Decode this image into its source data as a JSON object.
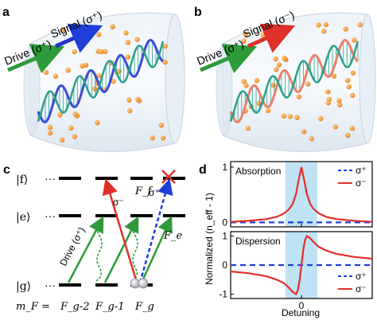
{
  "panels": {
    "a": {
      "label": "a",
      "drive_label": "Drive (σ⁺)",
      "signal_label": "Signal (σ⁺)",
      "drive_color": "#2e9a3a",
      "signal_color": "#2534c8",
      "helix_color": "#3d4bd4"
    },
    "b": {
      "label": "b",
      "drive_label": "Drive (σ⁺)",
      "signal_label": "Signal (σ⁻)",
      "drive_color": "#2e9a3a",
      "signal_color": "#e0302a",
      "helix_color": "#e8826a"
    },
    "c": {
      "label": "c",
      "levels": [
        "|f⟩",
        "|e⟩",
        "|g⟩"
      ],
      "dots": "···",
      "mf_label": "m_F =",
      "mf_values": [
        "F_g-2",
        "F_g-1",
        "F_g"
      ],
      "transition_labels": {
        "sigma_minus": "σ⁻",
        "sigma_plus": "σ⁺",
        "Ff": "F_f",
        "Fe": "F_e",
        "drive": "Drive (σ⁺)"
      }
    },
    "d": {
      "label": "d",
      "y_axis_label": "Normalized (n_eff - 1)",
      "x_axis_label": "Detuning",
      "top_title": "Absorption",
      "bottom_title": "Dispersion",
      "legend_plus": "σ⁺",
      "legend_minus": "σ⁻",
      "plus_color": "#1f3fd8",
      "minus_color": "#e0302a",
      "band_color": "#bfe3f5"
    }
  },
  "chart_data": [
    {
      "type": "line",
      "title": "Absorption",
      "xlabel": "Detuning",
      "ylabel": "Normalized (n_eff - 1)",
      "xticks": [
        "0"
      ],
      "yticks": [
        "0",
        "1"
      ],
      "xlim": [
        -2,
        2
      ],
      "ylim": [
        -0.08,
        1.1
      ],
      "series": [
        {
          "name": "σ⁺",
          "style": "dashed",
          "x": [
            -2,
            2
          ],
          "y": [
            0,
            0
          ]
        },
        {
          "name": "σ⁻",
          "style": "solid",
          "x": [
            -2.0,
            -1.5,
            -1.0,
            -0.7,
            -0.5,
            -0.35,
            -0.25,
            -0.15,
            -0.08,
            0.0,
            0.08,
            0.15,
            0.25,
            0.35,
            0.5,
            0.7,
            1.0,
            1.5,
            2.0
          ],
          "y": [
            0.01,
            0.03,
            0.06,
            0.1,
            0.16,
            0.24,
            0.33,
            0.52,
            0.76,
            1.0,
            0.76,
            0.52,
            0.33,
            0.24,
            0.16,
            0.1,
            0.06,
            0.03,
            0.01
          ]
        }
      ]
    },
    {
      "type": "line",
      "title": "Dispersion",
      "xlabel": "Detuning",
      "ylabel": "Normalized (n_eff - 1)",
      "xticks": [
        "0"
      ],
      "yticks": [
        "-1",
        "0",
        "1"
      ],
      "xlim": [
        -2,
        2
      ],
      "ylim": [
        -1.15,
        1.15
      ],
      "series": [
        {
          "name": "σ⁺",
          "style": "dashed",
          "x": [
            -2,
            2
          ],
          "y": [
            0,
            0
          ]
        },
        {
          "name": "σ⁻",
          "style": "solid",
          "x": [
            -2.0,
            -1.5,
            -1.0,
            -0.7,
            -0.5,
            -0.35,
            -0.25,
            -0.15,
            -0.1,
            -0.05,
            0.0,
            0.05,
            0.1,
            0.15,
            0.25,
            0.35,
            0.5,
            0.7,
            1.0,
            1.5,
            2.0
          ],
          "y": [
            -0.22,
            -0.28,
            -0.38,
            -0.5,
            -0.62,
            -0.78,
            -0.92,
            -1.0,
            -0.85,
            -0.5,
            0.0,
            0.5,
            0.85,
            1.0,
            0.92,
            0.78,
            0.62,
            0.5,
            0.38,
            0.28,
            0.22
          ]
        }
      ]
    }
  ]
}
